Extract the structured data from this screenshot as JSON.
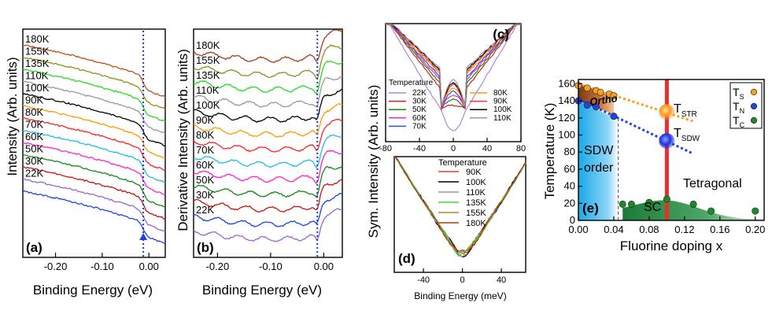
{
  "chart_data": [
    {
      "panel": "a",
      "type": "line",
      "panel_label": "(a)",
      "ylabel": "Intensity (Arb. units)",
      "xlabel": "Binding Energy (eV)",
      "xlim": [
        -0.27,
        0.035
      ],
      "xticks": [
        -0.2,
        -0.1,
        0.0
      ],
      "xtick_labels": [
        "-0.20",
        "-0.10",
        "0.00"
      ],
      "fermi_marker_x": -0.012,
      "series": [
        {
          "name": "180K",
          "color": "#c0501a"
        },
        {
          "name": "155K",
          "color": "#8f8f1f"
        },
        {
          "name": "135K",
          "color": "#22dd22"
        },
        {
          "name": "110K",
          "color": "#999999"
        },
        {
          "name": "100K",
          "color": "#000000"
        },
        {
          "name": "90K",
          "color": "#ff9900"
        },
        {
          "name": "80K",
          "color": "#ff2222"
        },
        {
          "name": "70K",
          "color": "#22bbee"
        },
        {
          "name": "60K",
          "color": "#ff22cc"
        },
        {
          "name": "50K",
          "color": "#118811"
        },
        {
          "name": "30K",
          "color": "#cc1111"
        },
        {
          "name": "22K",
          "color": "#9966cc"
        },
        {
          "name": "",
          "color": "#1a44dd"
        }
      ]
    },
    {
      "panel": "b",
      "type": "line",
      "panel_label": "(b)",
      "ylabel": "Derivative Intensity (Arb. units)",
      "xlabel": "Binding Energy (eV)",
      "xlim": [
        -0.245,
        0.035
      ],
      "xticks": [
        -0.2,
        -0.1,
        0.0
      ],
      "xtick_labels": [
        "-0.20",
        "-0.10",
        "0.00"
      ],
      "fermi_marker_x": -0.012,
      "series": [
        {
          "name": "180K",
          "color": "#a0401a"
        },
        {
          "name": "155K",
          "color": "#8f8f1f"
        },
        {
          "name": "135K",
          "color": "#22dd22"
        },
        {
          "name": "110K",
          "color": "#999999"
        },
        {
          "name": "100K",
          "color": "#000000"
        },
        {
          "name": "90K",
          "color": "#ff9900"
        },
        {
          "name": "80K",
          "color": "#ff2222"
        },
        {
          "name": "70K",
          "color": "#22bbee"
        },
        {
          "name": "60K",
          "color": "#ff22cc"
        },
        {
          "name": "50K",
          "color": "#118811"
        },
        {
          "name": "30K",
          "color": "#cc1111"
        },
        {
          "name": "22K",
          "color": "#1a44dd"
        },
        {
          "name": "",
          "color": "#9966cc"
        }
      ]
    },
    {
      "panel": "c",
      "type": "line",
      "panel_label": "(c)",
      "xlim": [
        -80,
        80
      ],
      "xticks": [
        -80,
        -40,
        0,
        40,
        80
      ],
      "xtick_labels": [
        "-80",
        "-40",
        "0",
        "40",
        "80"
      ],
      "legend_title": "Temperature",
      "series": [
        {
          "name": "22K",
          "color": "#aa88dd",
          "floor": 0.05
        },
        {
          "name": "30K",
          "color": "#cc2222",
          "floor": 0.28
        },
        {
          "name": "50K",
          "color": "#118811",
          "floor": 0.33
        },
        {
          "name": "60K",
          "color": "#ff22cc",
          "floor": 0.37
        },
        {
          "name": "70K",
          "color": "#2255ee",
          "floor": 0.4
        },
        {
          "name": "80K",
          "color": "#ff9900",
          "floor": 0.43
        },
        {
          "name": "90K",
          "color": "#ff3333",
          "floor": 0.46
        },
        {
          "name": "100K",
          "color": "#000000",
          "floor": 0.48
        },
        {
          "name": "110K",
          "color": "#999999",
          "floor": 0.5
        }
      ]
    },
    {
      "panel": "d",
      "type": "line",
      "panel_label": "(d)",
      "xlabel": "Binding Energy (meV)",
      "xlim": [
        -70,
        65
      ],
      "xticks": [
        -40,
        0,
        40
      ],
      "xtick_labels": [
        "-40",
        "0",
        "40"
      ],
      "legend_title": "Temperature",
      "series": [
        {
          "name": "90K",
          "color": "#ff3333"
        },
        {
          "name": "100K",
          "color": "#000000"
        },
        {
          "name": "110K",
          "color": "#999999"
        },
        {
          "name": "135K",
          "color": "#33dd33"
        },
        {
          "name": "155K",
          "color": "#999922"
        },
        {
          "name": "180K",
          "color": "#a0401a"
        }
      ]
    },
    {
      "panel": "e",
      "type": "scatter",
      "panel_label": "(e)",
      "xlabel": "Fluorine doping x",
      "ylabel": "Temperature (K)",
      "xlim": [
        0.0,
        0.21
      ],
      "ylim": [
        0,
        165
      ],
      "xticks": [
        0.0,
        0.04,
        0.08,
        0.12,
        0.16,
        0.2
      ],
      "xtick_labels": [
        "0.00",
        "0.04",
        "0.08",
        "0.12",
        "0.16",
        "0.20"
      ],
      "yticks": [
        0,
        20,
        40,
        60,
        80,
        100,
        120,
        140,
        160
      ],
      "ytick_labels": [
        "0",
        "20",
        "40",
        "60",
        "80",
        "100",
        "120",
        "140",
        "160"
      ],
      "series": [
        {
          "name": "T_S",
          "color": "#f5a020",
          "x": [
            0.0,
            0.01,
            0.02,
            0.025,
            0.035,
            0.04
          ],
          "y": [
            158,
            155,
            152,
            150,
            148,
            146
          ]
        },
        {
          "name": "T_N",
          "color": "#2244dd",
          "x": [
            0.0,
            0.01,
            0.02,
            0.04
          ],
          "y": [
            140,
            135,
            133,
            122
          ]
        },
        {
          "name": "T_C",
          "color": "#1d8a2a",
          "x": [
            0.05,
            0.06,
            0.08,
            0.1,
            0.13,
            0.15,
            0.2
          ],
          "y": [
            19,
            19,
            21,
            25,
            19,
            11,
            11
          ]
        }
      ],
      "highlight_points": [
        {
          "label": "T_STR",
          "x": 0.1,
          "y": 127,
          "color": "#ff8c1a"
        },
        {
          "label": "T_SDW",
          "x": 0.1,
          "y": 93,
          "color": "#2233dd"
        }
      ],
      "fit_lines": [
        {
          "x": [
            0.0,
            0.13
          ],
          "y": [
            160,
            116
          ],
          "color": "#f5a020"
        },
        {
          "x": [
            0.0,
            0.13
          ],
          "y": [
            142,
            78
          ],
          "color": "#2244dd"
        }
      ],
      "vertical_line": {
        "x": 0.1,
        "color": "#e53030"
      },
      "dashed_line": {
        "x": 0.045
      },
      "regions": {
        "sdw": "SDW order",
        "ortho": "Ortho",
        "tetragonal": "Tetragonal",
        "sc": "SC"
      },
      "legend": [
        {
          "base": "T",
          "sub": "S",
          "color": "#f5a020"
        },
        {
          "base": "T",
          "sub": "N",
          "color": "#2244dd"
        },
        {
          "base": "T",
          "sub": "C",
          "color": "#1d8a2a"
        }
      ],
      "labels": {
        "tstr": {
          "base": "T",
          "sub": "STR"
        },
        "tsdw": {
          "base": "T",
          "sub": "SDW"
        }
      }
    }
  ],
  "shared": {
    "sym_ylabel": "Sym. Intensity (Arb. units)"
  }
}
